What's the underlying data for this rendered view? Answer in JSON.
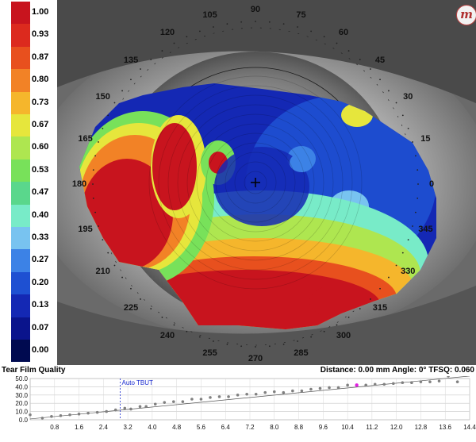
{
  "legend": {
    "values": [
      "1.00",
      "0.93",
      "0.87",
      "0.80",
      "0.73",
      "0.67",
      "0.60",
      "0.53",
      "0.47",
      "0.40",
      "0.33",
      "0.27",
      "0.20",
      "0.13",
      "0.07",
      "0.00"
    ],
    "colors": [
      "#c8141e",
      "#dc2a1e",
      "#e8501e",
      "#f28226",
      "#f5b62c",
      "#e6e63c",
      "#aee650",
      "#78e15a",
      "#5ad78c",
      "#78ebc8",
      "#78c3f0",
      "#3c82e6",
      "#1e50d2",
      "#1428b4",
      "#0a148c",
      "#000a50"
    ]
  },
  "logo": {
    "text": "m"
  },
  "angles": [
    "0",
    "15",
    "30",
    "45",
    "60",
    "75",
    "90",
    "105",
    "120",
    "135",
    "150",
    "165",
    "180",
    "195",
    "210",
    "225",
    "240",
    "255",
    "270",
    "285",
    "300",
    "315",
    "330",
    "345"
  ],
  "status": {
    "title": "Tear Film Quality",
    "readout": "Distance: 0.00 mm Angle: 0° TFSQ:  0.060"
  },
  "chart_data": {
    "type": "scatter",
    "x_ticks": [
      "0.8",
      "1.6",
      "2.4",
      "3.2",
      "4.0",
      "4.8",
      "5.6",
      "6.4",
      "7.2",
      "8.0",
      "8.8",
      "9.6",
      "10.4",
      "11.2",
      "12.0",
      "12.8",
      "13.6",
      "14.4"
    ],
    "y_ticks": [
      "0.0",
      "10.0",
      "20.0",
      "30.0",
      "40.0",
      "50.0"
    ],
    "xlim": [
      0,
      14.4
    ],
    "ylim": [
      0,
      50
    ],
    "marker_label": "Auto TBUT",
    "marker_x": 2.95,
    "highlight_x": 10.7,
    "x": [
      0.0,
      0.4,
      0.7,
      1.0,
      1.3,
      1.6,
      1.9,
      2.2,
      2.5,
      2.8,
      3.1,
      3.3,
      3.6,
      3.8,
      4.1,
      4.4,
      4.7,
      5.0,
      5.3,
      5.6,
      5.9,
      6.2,
      6.5,
      6.8,
      7.1,
      7.4,
      7.7,
      8.0,
      8.3,
      8.6,
      8.9,
      9.2,
      9.5,
      9.8,
      10.1,
      10.4,
      10.7,
      11.0,
      11.3,
      11.6,
      11.9,
      12.2,
      12.5,
      12.8,
      13.1,
      13.4,
      13.7,
      14.0
    ],
    "values": [
      6,
      2,
      4,
      5,
      6,
      7,
      8,
      9,
      10,
      12,
      14,
      13,
      16,
      16,
      19,
      21,
      22,
      22,
      25,
      25,
      27,
      28,
      28,
      30,
      31,
      31,
      33,
      34,
      33,
      35,
      35,
      37,
      38,
      39,
      39,
      42,
      42,
      42,
      43,
      43,
      44,
      45,
      45,
      46,
      46,
      47,
      53,
      46
    ],
    "trend": [
      [
        0,
        1
      ],
      [
        14.4,
        53
      ]
    ]
  }
}
